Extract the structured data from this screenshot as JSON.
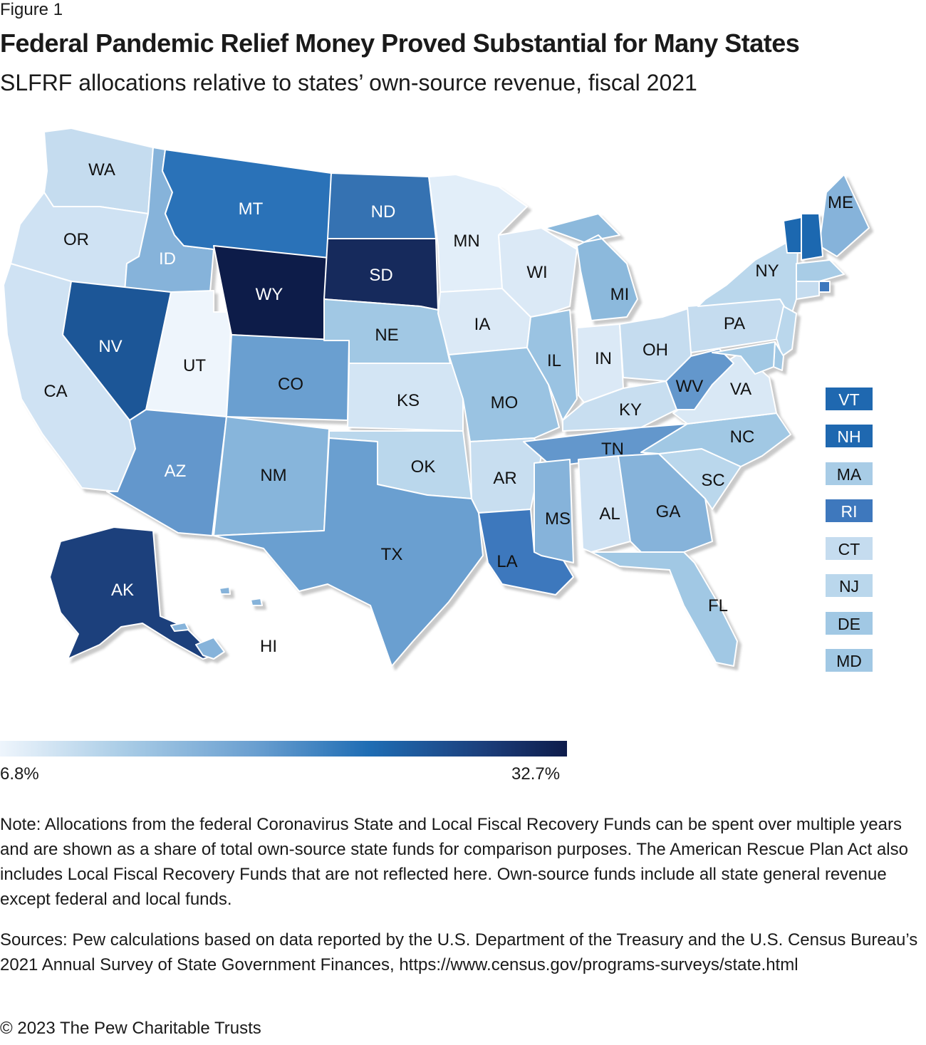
{
  "figure_label": "Figure 1",
  "title": "Federal Pandemic Relief Money Proved Substantial for Many States",
  "subtitle": "SLFRF allocations relative to states’ own-source revenue, fiscal 2021",
  "legend": {
    "min_label": "6.8%",
    "max_label": "32.7%"
  },
  "note": "Note: Allocations from the federal Coronavirus State and Local Fiscal Recovery Funds can be spent over multiple years and are shown as a share of total own-source state funds for comparison purposes. The American Rescue Plan Act also includes Local Fiscal Recovery Funds that are not reflected here. Own-source funds include all state general revenue except federal and local funds.",
  "sources": "Sources: Pew calculations based on data reported by the U.S. Department of the Treasury and the U.S. Census Bureau’s 2021 Annual Survey of State Government Finances, https://www.census.gov/programs-surveys/state.html",
  "copyright": "© 2023 The Pew Charitable Trusts",
  "states": [
    {
      "id": "WA",
      "color": "#c5dcef"
    },
    {
      "id": "OR",
      "color": "#cfe2f3"
    },
    {
      "id": "CA",
      "color": "#cfe2f3"
    },
    {
      "id": "ID",
      "color": "#86b3da"
    },
    {
      "id": "NV",
      "color": "#1f5797"
    },
    {
      "id": "UT",
      "color": "#eef5fc"
    },
    {
      "id": "AZ",
      "color": "#6497cc"
    },
    {
      "id": "MT",
      "color": "#2a72b8"
    },
    {
      "id": "WY",
      "color": "#101c4a"
    },
    {
      "id": "CO",
      "color": "#6b9fd0"
    },
    {
      "id": "NM",
      "color": "#87b5db"
    },
    {
      "id": "ND",
      "color": "#3572b2"
    },
    {
      "id": "SD",
      "color": "#162a5c"
    },
    {
      "id": "NE",
      "color": "#a1c8e4"
    },
    {
      "id": "KS",
      "color": "#d3e5f4"
    },
    {
      "id": "OK",
      "color": "#bad7ec"
    },
    {
      "id": "TX",
      "color": "#6b9fd0"
    },
    {
      "id": "MN",
      "color": "#e2eef9"
    },
    {
      "id": "IA",
      "color": "#dbe9f6"
    },
    {
      "id": "MO",
      "color": "#9ac3e2"
    },
    {
      "id": "AR",
      "color": "#c8def0"
    },
    {
      "id": "LA",
      "color": "#3e78bd"
    },
    {
      "id": "WI",
      "color": "#dbe9f6"
    },
    {
      "id": "IL",
      "color": "#9ac3e2"
    },
    {
      "id": "MI",
      "color": "#8cb9dc"
    },
    {
      "id": "IN",
      "color": "#dbe9f6"
    },
    {
      "id": "OH",
      "color": "#c5dcef"
    },
    {
      "id": "KY",
      "color": "#c8def0"
    },
    {
      "id": "TN",
      "color": "#6497cc"
    },
    {
      "id": "MS",
      "color": "#86b3da"
    },
    {
      "id": "AL",
      "color": "#cfe2f3"
    },
    {
      "id": "GA",
      "color": "#86b3da"
    },
    {
      "id": "FL",
      "color": "#a1c8e4"
    },
    {
      "id": "SC",
      "color": "#bad7ec"
    },
    {
      "id": "NC",
      "color": "#a1c8e4"
    },
    {
      "id": "VA",
      "color": "#d9e8f5"
    },
    {
      "id": "WV",
      "color": "#6497cc"
    },
    {
      "id": "PA",
      "color": "#c5dcef"
    },
    {
      "id": "NY",
      "color": "#bad7ec"
    },
    {
      "id": "ME",
      "color": "#86b3da"
    },
    {
      "id": "VT",
      "color": "#1f68b0"
    },
    {
      "id": "NH",
      "color": "#1f68b0"
    },
    {
      "id": "MA",
      "color": "#a8cce6"
    },
    {
      "id": "RI",
      "color": "#3e78bd"
    },
    {
      "id": "CT",
      "color": "#c5dcef"
    },
    {
      "id": "NJ",
      "color": "#bad7ec"
    },
    {
      "id": "DE",
      "color": "#a1c8e4"
    },
    {
      "id": "MD",
      "color": "#a1c8e4"
    },
    {
      "id": "AK",
      "color": "#1b3f7c"
    },
    {
      "id": "HI",
      "color": "#86b3da"
    }
  ],
  "callouts": [
    {
      "id": "VT",
      "color": "#1f68b0"
    },
    {
      "id": "NH",
      "color": "#1f68b0"
    },
    {
      "id": "MA",
      "color": "#a8cce6"
    },
    {
      "id": "RI",
      "color": "#3e78bd"
    },
    {
      "id": "CT",
      "color": "#c5dcef"
    },
    {
      "id": "NJ",
      "color": "#bad7ec"
    },
    {
      "id": "DE",
      "color": "#a1c8e4"
    },
    {
      "id": "MD",
      "color": "#a1c8e4"
    }
  ]
}
